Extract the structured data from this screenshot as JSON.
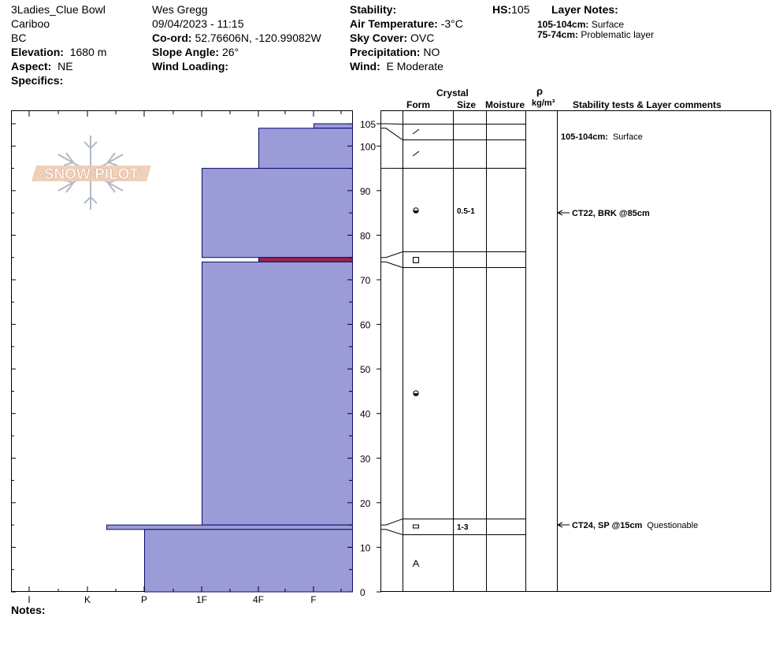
{
  "header": {
    "location": "3Ladies_Clue Bowl",
    "range": "Cariboo",
    "state": "BC",
    "elevation": {
      "label": "Elevation:",
      "value": "1680 m"
    },
    "aspect": {
      "label": "Aspect:",
      "value": "NE"
    },
    "specifics": {
      "label": "Specifics:",
      "value": ""
    },
    "observer": "Wes Gregg",
    "datetime": "09/04/2023 - 11:15",
    "coord": {
      "label": "Co-ord:",
      "value": "52.76606N, -120.99082W"
    },
    "slope": {
      "label": "Slope Angle:",
      "value": "26°"
    },
    "wind_loading": {
      "label": "Wind Loading:",
      "value": ""
    },
    "stability": {
      "label": "Stability:",
      "value": ""
    },
    "air_temp": {
      "label": "Air Temperature:",
      "value": "-3°C"
    },
    "sky": {
      "label": "Sky Cover:",
      "value": "OVC"
    },
    "precip": {
      "label": "Precipitation:",
      "value": "NO"
    },
    "wind": {
      "label": "Wind:",
      "value": "E Moderate"
    },
    "hs": {
      "label": "HS:",
      "value": "105"
    },
    "layer_notes": {
      "label": "Layer Notes:",
      "items": [
        {
          "range": "105-104cm:",
          "text": "Surface"
        },
        {
          "range": "75-74cm:",
          "text": "Problematic layer"
        }
      ]
    }
  },
  "logo_text": "SNOW PILOT",
  "columns": {
    "crystal": "Crystal",
    "form": "Form",
    "size": "Size",
    "moisture": "Moisture",
    "rho": "ρ",
    "density": "kg/m³",
    "comments": "Stability tests & Layer comments"
  },
  "notes_label": "Notes:",
  "colors": {
    "fill": "#9b9bd7",
    "edge": "#0b0b6e",
    "problem": "#a0204a"
  },
  "chart_data": {
    "type": "bar",
    "orientation": "horizontal",
    "y_ticks": [
      0,
      10,
      20,
      30,
      40,
      50,
      60,
      70,
      80,
      90,
      100,
      105
    ],
    "ylim": [
      0,
      105
    ],
    "x_ticks": [
      "I",
      "K",
      "P",
      "1F",
      "4F",
      "F"
    ],
    "hardness_layers": [
      {
        "bottom": 104,
        "top": 105,
        "hardness": "F"
      },
      {
        "bottom": 95,
        "top": 104,
        "hardness": "4F"
      },
      {
        "bottom": 75,
        "top": 95,
        "hardness": "1F"
      },
      {
        "bottom": 74,
        "top": 75,
        "hardness": "4F",
        "problematic": true
      },
      {
        "bottom": 15,
        "top": 74,
        "hardness": "1F"
      },
      {
        "bottom": 14,
        "top": 15,
        "hardness": "K+"
      },
      {
        "bottom": 0,
        "top": 14,
        "hardness": "P"
      }
    ],
    "boundaries": [
      105,
      104,
      95,
      75,
      74,
      16,
      13
    ],
    "crystals": [
      {
        "depth": 104.5,
        "form": "decomposing"
      },
      {
        "depth": 100,
        "form": "decomposing"
      },
      {
        "depth": 85,
        "form": "rounded",
        "size": "0.5-1"
      },
      {
        "depth": 74.5,
        "form": "faceted"
      },
      {
        "depth": 45,
        "form": "rounded"
      },
      {
        "depth": 14.5,
        "form": "faceted-rounded",
        "size": "1-3"
      },
      {
        "depth": 6.5,
        "form": "depth-hoar"
      }
    ],
    "comments": [
      {
        "depth": 104.5,
        "range": "105-104cm:",
        "text": "Surface"
      },
      {
        "depth": 85,
        "range": "CT22, BRK @85cm",
        "text": "",
        "arrow": true
      },
      {
        "depth": 15,
        "range": "CT24, SP @15cm",
        "text": "Questionable",
        "arrow": true
      }
    ]
  }
}
